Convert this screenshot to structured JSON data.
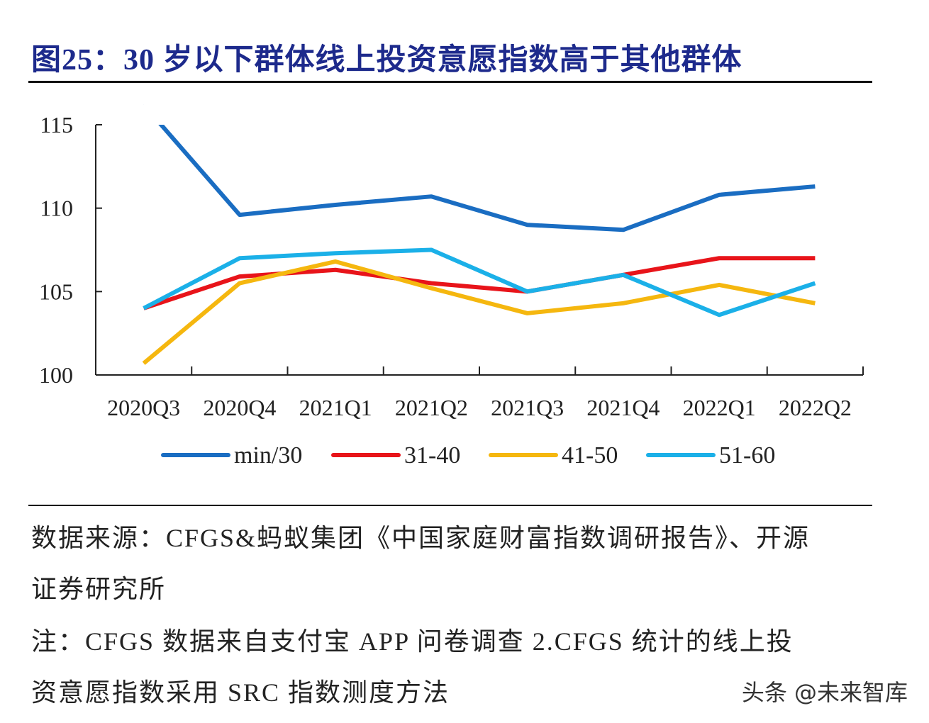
{
  "title": "图25：30 岁以下群体线上投资意愿指数高于其他群体",
  "chart_data": {
    "type": "line",
    "title": "图25：30 岁以下群体线上投资意愿指数高于其他群体",
    "categories": [
      "2020Q3",
      "2020Q4",
      "2021Q1",
      "2021Q2",
      "2021Q3",
      "2021Q4",
      "2022Q1",
      "2022Q2"
    ],
    "ylim": [
      100,
      115
    ],
    "yticks": [
      100,
      105,
      110,
      115
    ],
    "grid": false,
    "legend": "bottom",
    "series": [
      {
        "name": "min/30",
        "color": "#1a6dc2",
        "values": [
          116.2,
          109.6,
          110.2,
          110.7,
          109.0,
          108.7,
          110.8,
          111.3
        ]
      },
      {
        "name": "31-40",
        "color": "#e8141a",
        "values": [
          104.0,
          105.9,
          106.3,
          105.5,
          105.0,
          106.0,
          107.0,
          107.0
        ]
      },
      {
        "name": "41-50",
        "color": "#f5b70f",
        "values": [
          100.7,
          105.5,
          106.8,
          105.2,
          103.7,
          104.3,
          105.4,
          104.3
        ]
      },
      {
        "name": "51-60",
        "color": "#1bb0e8",
        "values": [
          104.0,
          107.0,
          107.3,
          107.5,
          105.0,
          106.0,
          103.6,
          105.5
        ]
      }
    ]
  },
  "notes": {
    "source_line1": "数据来源：CFGS&蚂蚁集团《中国家庭财富指数调研报告》、开源",
    "source_line2": "证券研究所",
    "note_line1": "注：CFGS 数据来自支付宝 APP 问卷调查 2.CFGS 统计的线上投",
    "note_line2": "资意愿指数采用 SRC 指数测度方法"
  },
  "watermark": "头条 @未来智库"
}
